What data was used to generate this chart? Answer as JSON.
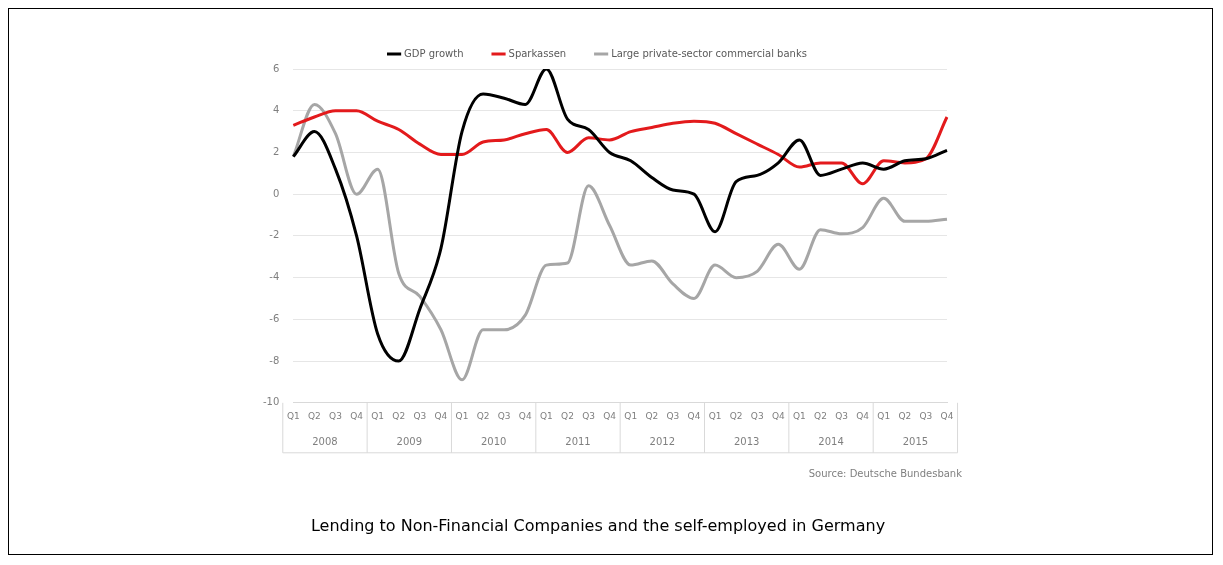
{
  "chart_data": {
    "type": "line",
    "title": "Lending to Non-Financial Companies and the self-employed in Germany",
    "categories": [
      "Q1",
      "Q2",
      "Q3",
      "Q4",
      "Q1",
      "Q2",
      "Q3",
      "Q4",
      "Q1",
      "Q2",
      "Q3",
      "Q4",
      "Q1",
      "Q2",
      "Q3",
      "Q4",
      "Q1",
      "Q2",
      "Q3",
      "Q4",
      "Q1",
      "Q2",
      "Q3",
      "Q4",
      "Q1",
      "Q2",
      "Q3",
      "Q4",
      "Q1",
      "Q2",
      "Q3",
      "Q4"
    ],
    "series": [
      {
        "name": "GDP growth",
        "color": "#000000",
        "values": [
          1.8,
          3.0,
          1.2,
          -2.0,
          -6.7,
          -8.0,
          -5.5,
          -2.6,
          3.0,
          4.8,
          4.6,
          4.3,
          6.0,
          3.6,
          3.1,
          2.0,
          1.6,
          0.8,
          0.2,
          0.0,
          -1.8,
          0.6,
          0.9,
          1.5,
          2.6,
          0.9,
          1.2,
          1.5,
          1.2,
          1.6,
          1.7,
          2.1
        ]
      },
      {
        "name": "Sparkassen",
        "color": "#e31a1c",
        "values": [
          3.3,
          3.7,
          4.0,
          4.0,
          3.5,
          3.1,
          2.4,
          1.9,
          1.9,
          2.5,
          2.6,
          2.9,
          3.1,
          2.0,
          2.7,
          2.6,
          3.0,
          3.2,
          3.4,
          3.5,
          3.4,
          2.9,
          2.4,
          1.9,
          1.3,
          1.5,
          1.5,
          0.5,
          1.6,
          1.5,
          1.7,
          3.7
        ]
      },
      {
        "name": "Large private-sector commercial banks",
        "color": "#a6a6a6",
        "values": [
          1.8,
          4.3,
          2.9,
          0.0,
          1.2,
          -3.8,
          -4.9,
          -6.5,
          -8.9,
          -6.5,
          -6.5,
          -5.8,
          -3.4,
          -3.3,
          0.4,
          -1.5,
          -3.4,
          -3.2,
          -4.3,
          -5.0,
          -3.4,
          -4.0,
          -3.7,
          -2.4,
          -3.6,
          -1.7,
          -1.9,
          -1.6,
          -0.2,
          -1.3,
          -1.3,
          -1.2
        ]
      }
    ],
    "ylim": [
      -10,
      6
    ],
    "yticks": [
      -10,
      -8,
      -6,
      -4,
      -2,
      0,
      2,
      4,
      6
    ],
    "grid": "y",
    "legend": "top",
    "marker": "none",
    "line_style": "solid",
    "annotations": [
      "2008",
      "2009",
      "2010",
      "2011",
      "2012",
      "2013",
      "2014",
      "2015",
      "Source: Deutsche Bundesbank"
    ]
  }
}
